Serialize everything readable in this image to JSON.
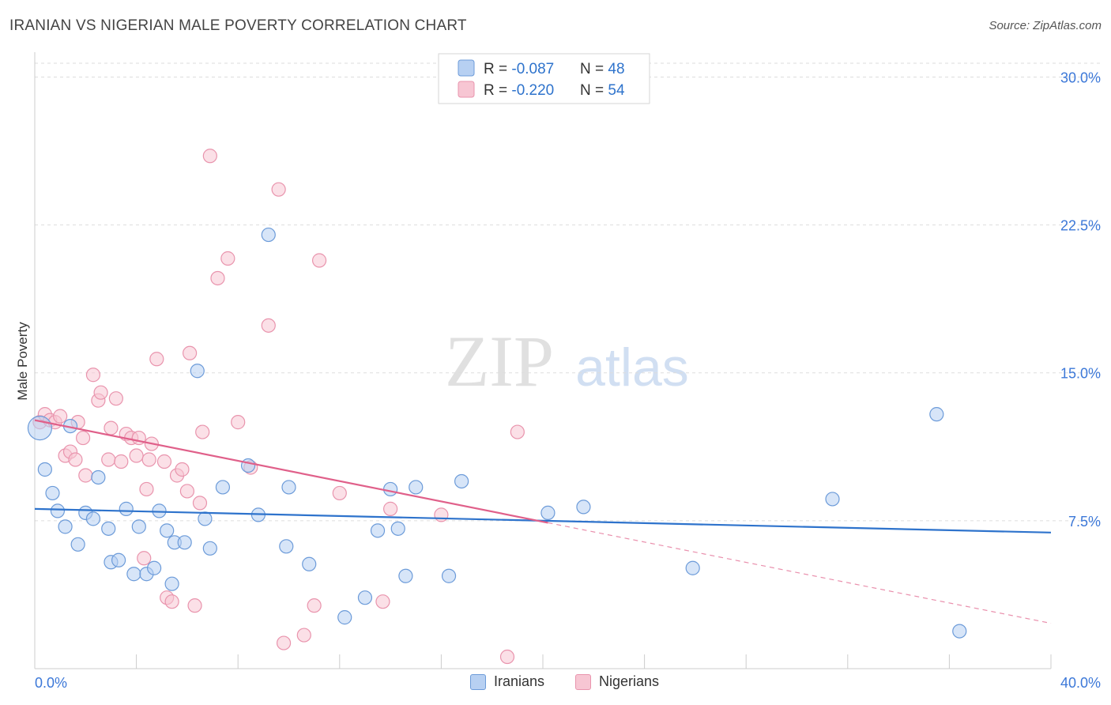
{
  "title": "IRANIAN VS NIGERIAN MALE POVERTY CORRELATION CHART",
  "source": "Source: ZipAtlas.com",
  "watermark": {
    "part1": "ZIP",
    "part2": "atlas"
  },
  "colors": {
    "iranians_fill": "#b7d0f2",
    "iranians_stroke": "#6c9bd9",
    "iranians_line": "#2e73cc",
    "nigerians_fill": "#f7c6d3",
    "nigerians_stroke": "#e994ad",
    "nigerians_line": "#e0608a",
    "tick_label": "#3c78d8",
    "grid": "#dddddd"
  },
  "legend_top": {
    "rows": [
      {
        "r_label": "R = ",
        "r_value": "-0.087",
        "n_label": "N = ",
        "n_value": "48"
      },
      {
        "r_label": "R = ",
        "r_value": "-0.220",
        "n_label": "N = ",
        "n_value": "54"
      }
    ]
  },
  "legend_bottom": {
    "iranians": "Iranians",
    "nigerians": "Nigerians"
  },
  "chart_data": {
    "type": "scatter",
    "ylabel": "Male Poverty",
    "xlabel": "",
    "xlim": [
      0,
      40
    ],
    "ylim": [
      0,
      30.7
    ],
    "x_tick_labels": [
      {
        "value": 0,
        "label": "0.0%"
      },
      {
        "value": 40,
        "label": "40.0%"
      }
    ],
    "y_tick_labels": [
      {
        "value": 7.5,
        "label": "7.5%"
      },
      {
        "value": 15.0,
        "label": "15.0%"
      },
      {
        "value": 22.5,
        "label": "22.5%"
      },
      {
        "value": 30.0,
        "label": "30.0%"
      }
    ],
    "grid": "horizontal dashed",
    "series": [
      {
        "name": "Iranians",
        "r": -0.087,
        "n": 48,
        "trend": {
          "x": [
            0,
            40
          ],
          "y": [
            8.1,
            6.9
          ],
          "style": "solid"
        },
        "points": [
          {
            "x": 0.2,
            "y": 12.2,
            "big": true
          },
          {
            "x": 0.4,
            "y": 10.1
          },
          {
            "x": 0.7,
            "y": 8.9
          },
          {
            "x": 0.9,
            "y": 8.0
          },
          {
            "x": 1.2,
            "y": 7.2
          },
          {
            "x": 1.4,
            "y": 12.3
          },
          {
            "x": 1.7,
            "y": 6.3
          },
          {
            "x": 2.0,
            "y": 7.9
          },
          {
            "x": 2.3,
            "y": 7.6
          },
          {
            "x": 2.5,
            "y": 9.7
          },
          {
            "x": 2.9,
            "y": 7.1
          },
          {
            "x": 3.0,
            "y": 5.4
          },
          {
            "x": 3.3,
            "y": 5.5
          },
          {
            "x": 3.6,
            "y": 8.1
          },
          {
            "x": 3.9,
            "y": 4.8
          },
          {
            "x": 4.1,
            "y": 7.2
          },
          {
            "x": 4.4,
            "y": 4.8
          },
          {
            "x": 4.7,
            "y": 5.1
          },
          {
            "x": 4.9,
            "y": 8.0
          },
          {
            "x": 5.2,
            "y": 7.0
          },
          {
            "x": 5.4,
            "y": 4.3
          },
          {
            "x": 5.5,
            "y": 6.4
          },
          {
            "x": 5.9,
            "y": 6.4
          },
          {
            "x": 6.4,
            "y": 15.1
          },
          {
            "x": 6.7,
            "y": 7.6
          },
          {
            "x": 6.9,
            "y": 6.1
          },
          {
            "x": 7.4,
            "y": 9.2
          },
          {
            "x": 8.4,
            "y": 10.3
          },
          {
            "x": 8.8,
            "y": 7.8
          },
          {
            "x": 9.2,
            "y": 22.0
          },
          {
            "x": 9.9,
            "y": 6.2
          },
          {
            "x": 10.0,
            "y": 9.2
          },
          {
            "x": 10.8,
            "y": 5.3
          },
          {
            "x": 12.2,
            "y": 2.6
          },
          {
            "x": 13.0,
            "y": 3.6
          },
          {
            "x": 13.5,
            "y": 7.0
          },
          {
            "x": 14.0,
            "y": 9.1
          },
          {
            "x": 14.3,
            "y": 7.1
          },
          {
            "x": 14.6,
            "y": 4.7
          },
          {
            "x": 15.0,
            "y": 9.2
          },
          {
            "x": 16.3,
            "y": 4.7
          },
          {
            "x": 16.8,
            "y": 9.5
          },
          {
            "x": 20.2,
            "y": 7.9
          },
          {
            "x": 21.6,
            "y": 8.2
          },
          {
            "x": 25.9,
            "y": 5.1
          },
          {
            "x": 31.4,
            "y": 8.6
          },
          {
            "x": 35.5,
            "y": 12.9
          },
          {
            "x": 36.4,
            "y": 1.9
          }
        ]
      },
      {
        "name": "Nigerians",
        "r": -0.22,
        "n": 54,
        "trend": {
          "x": [
            0,
            40
          ],
          "y": [
            12.6,
            2.3
          ],
          "solid_until_x": 20.2
        },
        "points": [
          {
            "x": 0.2,
            "y": 12.5
          },
          {
            "x": 0.4,
            "y": 12.9
          },
          {
            "x": 0.6,
            "y": 12.6
          },
          {
            "x": 0.8,
            "y": 12.5
          },
          {
            "x": 1.0,
            "y": 12.8
          },
          {
            "x": 1.2,
            "y": 10.8
          },
          {
            "x": 1.4,
            "y": 11.0
          },
          {
            "x": 1.6,
            "y": 10.6
          },
          {
            "x": 1.7,
            "y": 12.5
          },
          {
            "x": 1.9,
            "y": 11.7
          },
          {
            "x": 2.0,
            "y": 9.8
          },
          {
            "x": 2.3,
            "y": 14.9
          },
          {
            "x": 2.5,
            "y": 13.6
          },
          {
            "x": 2.6,
            "y": 14.0
          },
          {
            "x": 2.9,
            "y": 10.6
          },
          {
            "x": 3.0,
            "y": 12.2
          },
          {
            "x": 3.2,
            "y": 13.7
          },
          {
            "x": 3.4,
            "y": 10.5
          },
          {
            "x": 3.6,
            "y": 11.9
          },
          {
            "x": 3.8,
            "y": 11.7
          },
          {
            "x": 4.0,
            "y": 10.8
          },
          {
            "x": 4.1,
            "y": 11.7
          },
          {
            "x": 4.3,
            "y": 5.6
          },
          {
            "x": 4.4,
            "y": 9.1
          },
          {
            "x": 4.5,
            "y": 10.6
          },
          {
            "x": 4.6,
            "y": 11.4
          },
          {
            "x": 4.8,
            "y": 15.7
          },
          {
            "x": 5.1,
            "y": 10.5
          },
          {
            "x": 5.2,
            "y": 3.6
          },
          {
            "x": 5.4,
            "y": 3.4
          },
          {
            "x": 5.6,
            "y": 9.8
          },
          {
            "x": 5.8,
            "y": 10.1
          },
          {
            "x": 6.0,
            "y": 9.0
          },
          {
            "x": 6.1,
            "y": 16.0
          },
          {
            "x": 6.3,
            "y": 3.2
          },
          {
            "x": 6.5,
            "y": 8.4
          },
          {
            "x": 6.6,
            "y": 12.0
          },
          {
            "x": 6.9,
            "y": 26.0
          },
          {
            "x": 7.2,
            "y": 19.8
          },
          {
            "x": 7.6,
            "y": 20.8
          },
          {
            "x": 8.0,
            "y": 12.5
          },
          {
            "x": 8.5,
            "y": 10.2
          },
          {
            "x": 9.2,
            "y": 17.4
          },
          {
            "x": 9.6,
            "y": 24.3
          },
          {
            "x": 9.8,
            "y": 1.3
          },
          {
            "x": 10.6,
            "y": 1.7
          },
          {
            "x": 11.0,
            "y": 3.2
          },
          {
            "x": 11.2,
            "y": 20.7
          },
          {
            "x": 12.0,
            "y": 8.9
          },
          {
            "x": 13.7,
            "y": 3.4
          },
          {
            "x": 14.0,
            "y": 8.1
          },
          {
            "x": 16.0,
            "y": 7.8
          },
          {
            "x": 18.6,
            "y": 0.6
          },
          {
            "x": 19.0,
            "y": 12.0
          }
        ]
      }
    ]
  }
}
